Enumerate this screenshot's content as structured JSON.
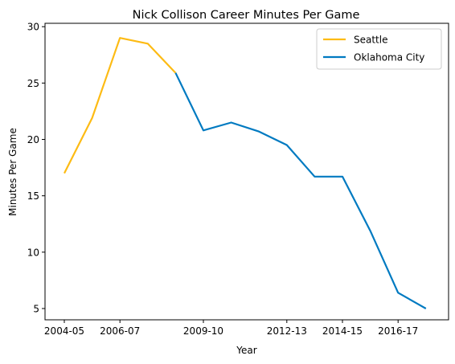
{
  "chart_data": {
    "type": "line",
    "title": "Nick Collison Career Minutes Per Game",
    "xlabel": "Year",
    "ylabel": "Minutes Per Game",
    "x_ticks": [
      "2004-05",
      "2006-07",
      "2009-10",
      "2012-13",
      "2014-15",
      "2016-17"
    ],
    "y_ticks": [
      5,
      10,
      15,
      20,
      25,
      30
    ],
    "xlim": [
      "2004-05",
      "2017-18"
    ],
    "ylim": [
      4,
      30.3
    ],
    "grid": false,
    "legend_position": "top-right",
    "series": [
      {
        "name": "Seattle",
        "color": "#FDBB14",
        "x": [
          "2004-05",
          "2005-06",
          "2006-07",
          "2007-08",
          "2008-09"
        ],
        "y": [
          17.0,
          21.9,
          29.0,
          28.5,
          25.9
        ]
      },
      {
        "name": "Oklahoma City",
        "color": "#007AC1",
        "x": [
          "2008-09",
          "2009-10",
          "2010-11",
          "2011-12",
          "2012-13",
          "2013-14",
          "2014-15",
          "2015-16",
          "2016-17",
          "2017-18"
        ],
        "y": [
          25.9,
          20.8,
          21.5,
          20.7,
          19.5,
          16.7,
          16.7,
          11.9,
          6.4,
          5.0
        ]
      }
    ]
  }
}
